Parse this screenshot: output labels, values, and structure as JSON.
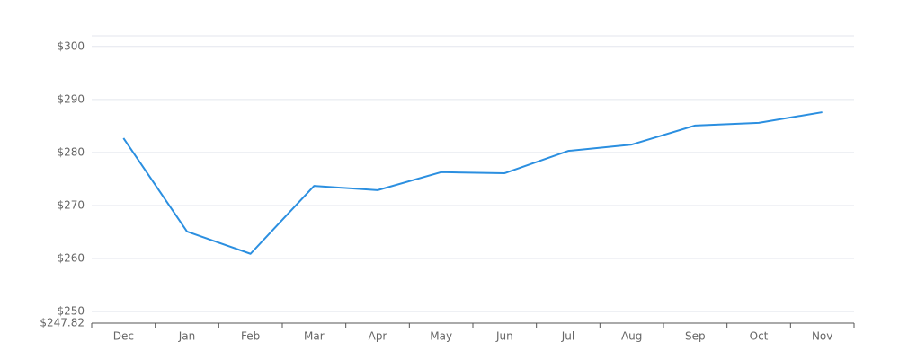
{
  "chart_data": {
    "type": "line",
    "categories": [
      "Dec",
      "Jan",
      "Feb",
      "Mar",
      "Apr",
      "May",
      "Jun",
      "Jul",
      "Aug",
      "Sep",
      "Oct",
      "Nov"
    ],
    "series": [
      {
        "color": "#2b8fe0",
        "values": [
          282.7,
          265.1,
          260.9,
          273.7,
          272.9,
          276.3,
          276.1,
          280.3,
          281.5,
          285.1,
          285.6,
          287.6
        ]
      }
    ],
    "ylim": [
      247.82,
      302
    ],
    "yticks": [
      {
        "value": 247.82,
        "label": "$247.82"
      },
      {
        "value": 250,
        "label": "$250"
      },
      {
        "value": 260,
        "label": "$260"
      },
      {
        "value": 270,
        "label": "$270"
      },
      {
        "value": 280,
        "label": "$280"
      },
      {
        "value": 290,
        "label": "$290"
      },
      {
        "value": 300,
        "label": "$300"
      }
    ],
    "grid": true
  }
}
